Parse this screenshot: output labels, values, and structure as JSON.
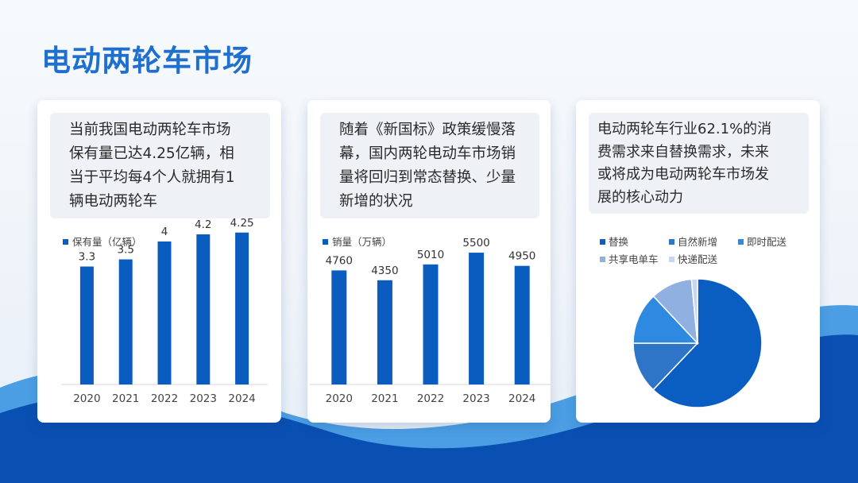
{
  "title": "电动两轮车市场",
  "colors": {
    "title": "#1f6fce",
    "bar": "#0b5cbf",
    "wave_dark": "#0a4fb2",
    "wave_light": "#2f8fe0",
    "pie": [
      "#0a5ec2",
      "#2e74c7",
      "#2d8ae0",
      "#8fb0e0",
      "#c7d7ef"
    ]
  },
  "cards": [
    {
      "desc_lines": [
        "当前我国电动两轮车市场",
        "保有量已达4.25亿辆，相",
        "当于平均每4个人就拥有1",
        "辆电动两轮车"
      ]
    },
    {
      "desc_lines": [
        "随着《新国标》政策缓慢落",
        "幕，国内两轮电动车市场销",
        "量将回归到常态替换、少量",
        "新增的状况"
      ]
    },
    {
      "desc_lines": [
        "电动两轮车行业62.1%的消",
        "费需求来自替换需求，未来",
        "或将成为电动两轮车市场发",
        "展的核心动力"
      ]
    }
  ],
  "chart_data": [
    {
      "type": "bar",
      "categories": [
        "2020",
        "2021",
        "2022",
        "2023",
        "2024"
      ],
      "values": [
        3.3,
        3.5,
        4,
        4.2,
        4.25
      ],
      "labels": [
        "3.3",
        "3.5",
        "4",
        "4.2",
        "4.25"
      ],
      "legend": "保有量（亿辆）",
      "ylim": [
        0,
        4.6
      ],
      "grid": false,
      "legend_position": "top-left"
    },
    {
      "type": "bar",
      "categories": [
        "2020",
        "2021",
        "2022",
        "2023",
        "2024"
      ],
      "values": [
        4760,
        4350,
        5010,
        5500,
        4950
      ],
      "labels": [
        "4760",
        "4350",
        "5010",
        "5500",
        "4950"
      ],
      "legend": "销量（万辆）",
      "ylim": [
        0,
        5900
      ],
      "grid": false,
      "legend_position": "top-left"
    },
    {
      "type": "pie",
      "categories": [
        "替换",
        "自然新增",
        "即时配送",
        "共享电单车",
        "快递配送"
      ],
      "values": [
        62.1,
        12.9,
        13.0,
        10.5,
        1.5
      ],
      "legend_position": "top"
    }
  ]
}
